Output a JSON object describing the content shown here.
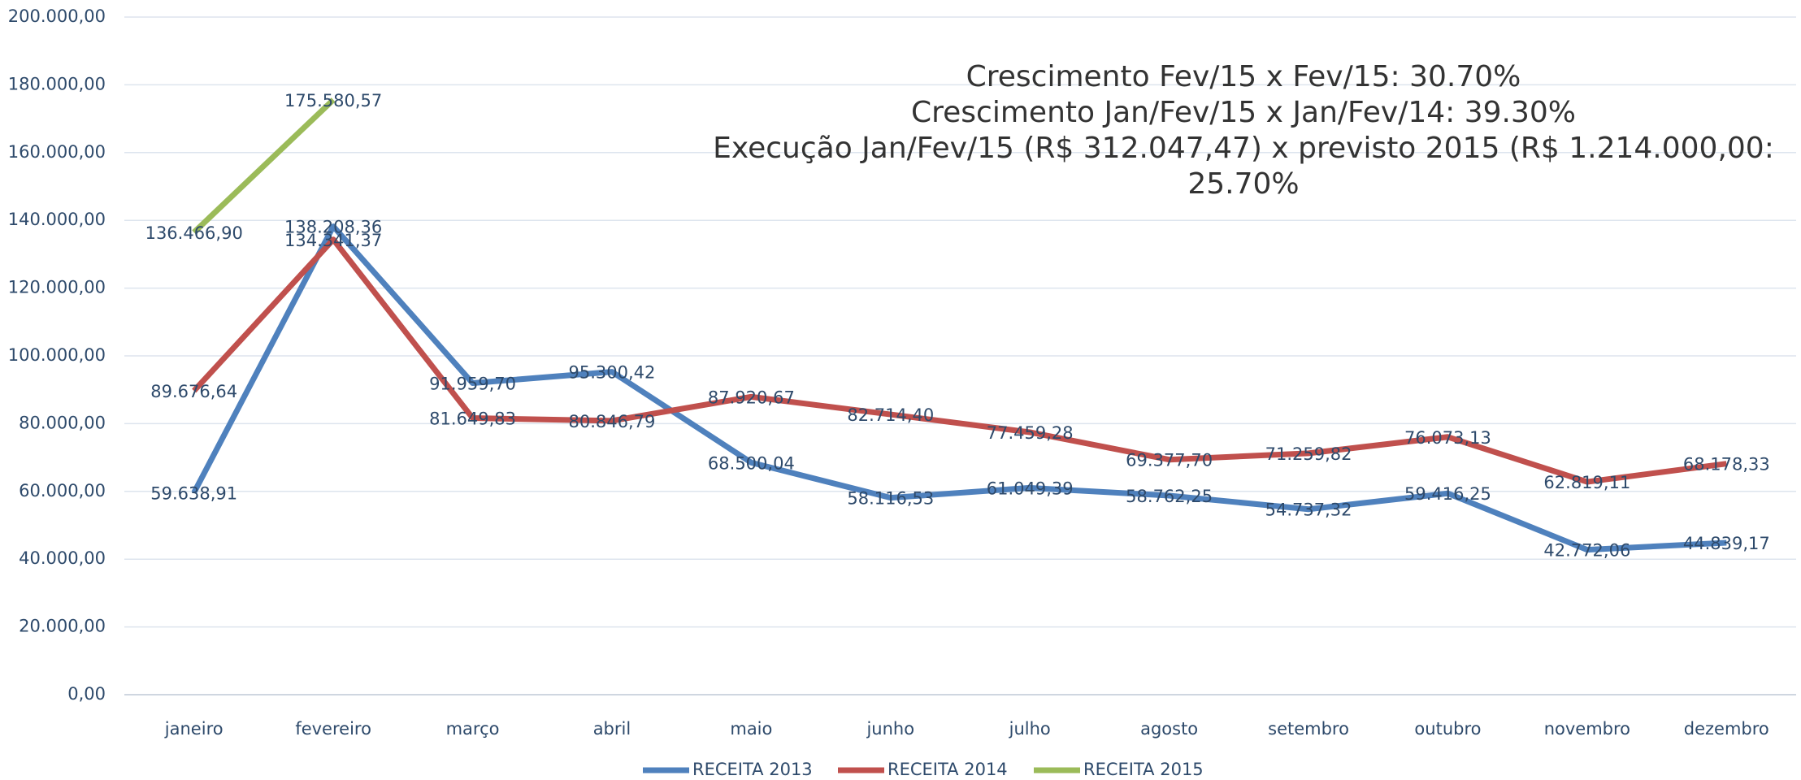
{
  "chart_data": {
    "type": "line",
    "annotation": [
      "Crescimento Fev/15 x Fev/15: 30.70%",
      "Crescimento Jan/Fev/15 x Jan/Fev/14: 39.30%",
      "Execução Jan/Fev/15 (R$ 312.047,47) x  previsto 2015 (R$ 1.214.000,00:",
      "25.70%"
    ],
    "categories": [
      "janeiro",
      "fevereiro",
      "março",
      "abril",
      "maio",
      "junho",
      "julho",
      "agosto",
      "setembro",
      "outubro",
      "novembro",
      "dezembro"
    ],
    "series": [
      {
        "name": "RECEITA 2013",
        "color": "#4f81bd",
        "values": [
          59638.91,
          138208.36,
          91959.7,
          95300.42,
          68500.04,
          58116.53,
          61049.39,
          58762.25,
          54737.32,
          59416.25,
          42772.06,
          44839.17
        ],
        "value_labels": [
          "59.638,91",
          "138.208,36",
          "91.959,70",
          "95.300,42",
          "68.500,04",
          "58.116,53",
          "61.049,39",
          "58.762,25",
          "54.737,32",
          "59.416,25",
          "42.772,06",
          "44.839,17"
        ]
      },
      {
        "name": "RECEITA 2014",
        "color": "#c0504d",
        "values": [
          89676.64,
          134341.37,
          81649.83,
          80846.79,
          87920.67,
          82714.4,
          77459.28,
          69377.7,
          71259.82,
          76073.13,
          62819.11,
          68178.33
        ],
        "value_labels": [
          "89.676,64",
          "134.341,37",
          "81.649,83",
          "80.846,79",
          "87.920,67",
          "82.714,40",
          "77.459,28",
          "69.377,70",
          "71.259,82",
          "76.073,13",
          "62.819,11",
          "68.178,33"
        ]
      },
      {
        "name": "RECEITA 2015",
        "color": "#9bbb59",
        "values": [
          136466.9,
          175580.57,
          null,
          null,
          null,
          null,
          null,
          null,
          null,
          null,
          null,
          null
        ],
        "value_labels": [
          "136.466,90",
          "175.580,57",
          null,
          null,
          null,
          null,
          null,
          null,
          null,
          null,
          null,
          null
        ]
      }
    ],
    "ylim": [
      0,
      200000
    ],
    "yticks": [
      {
        "value": 0,
        "label": "0,00"
      },
      {
        "value": 20000,
        "label": "20.000,00"
      },
      {
        "value": 40000,
        "label": "40.000,00"
      },
      {
        "value": 60000,
        "label": "60.000,00"
      },
      {
        "value": 80000,
        "label": "80.000,00"
      },
      {
        "value": 100000,
        "label": "100.000,00"
      },
      {
        "value": 120000,
        "label": "120.000,00"
      },
      {
        "value": 140000,
        "label": "140.000,00"
      },
      {
        "value": 160000,
        "label": "160.000,00"
      },
      {
        "value": 180000,
        "label": "180.000,00"
      },
      {
        "value": 200000,
        "label": "200.000,00"
      }
    ],
    "grid": true,
    "legend": "bottom"
  }
}
